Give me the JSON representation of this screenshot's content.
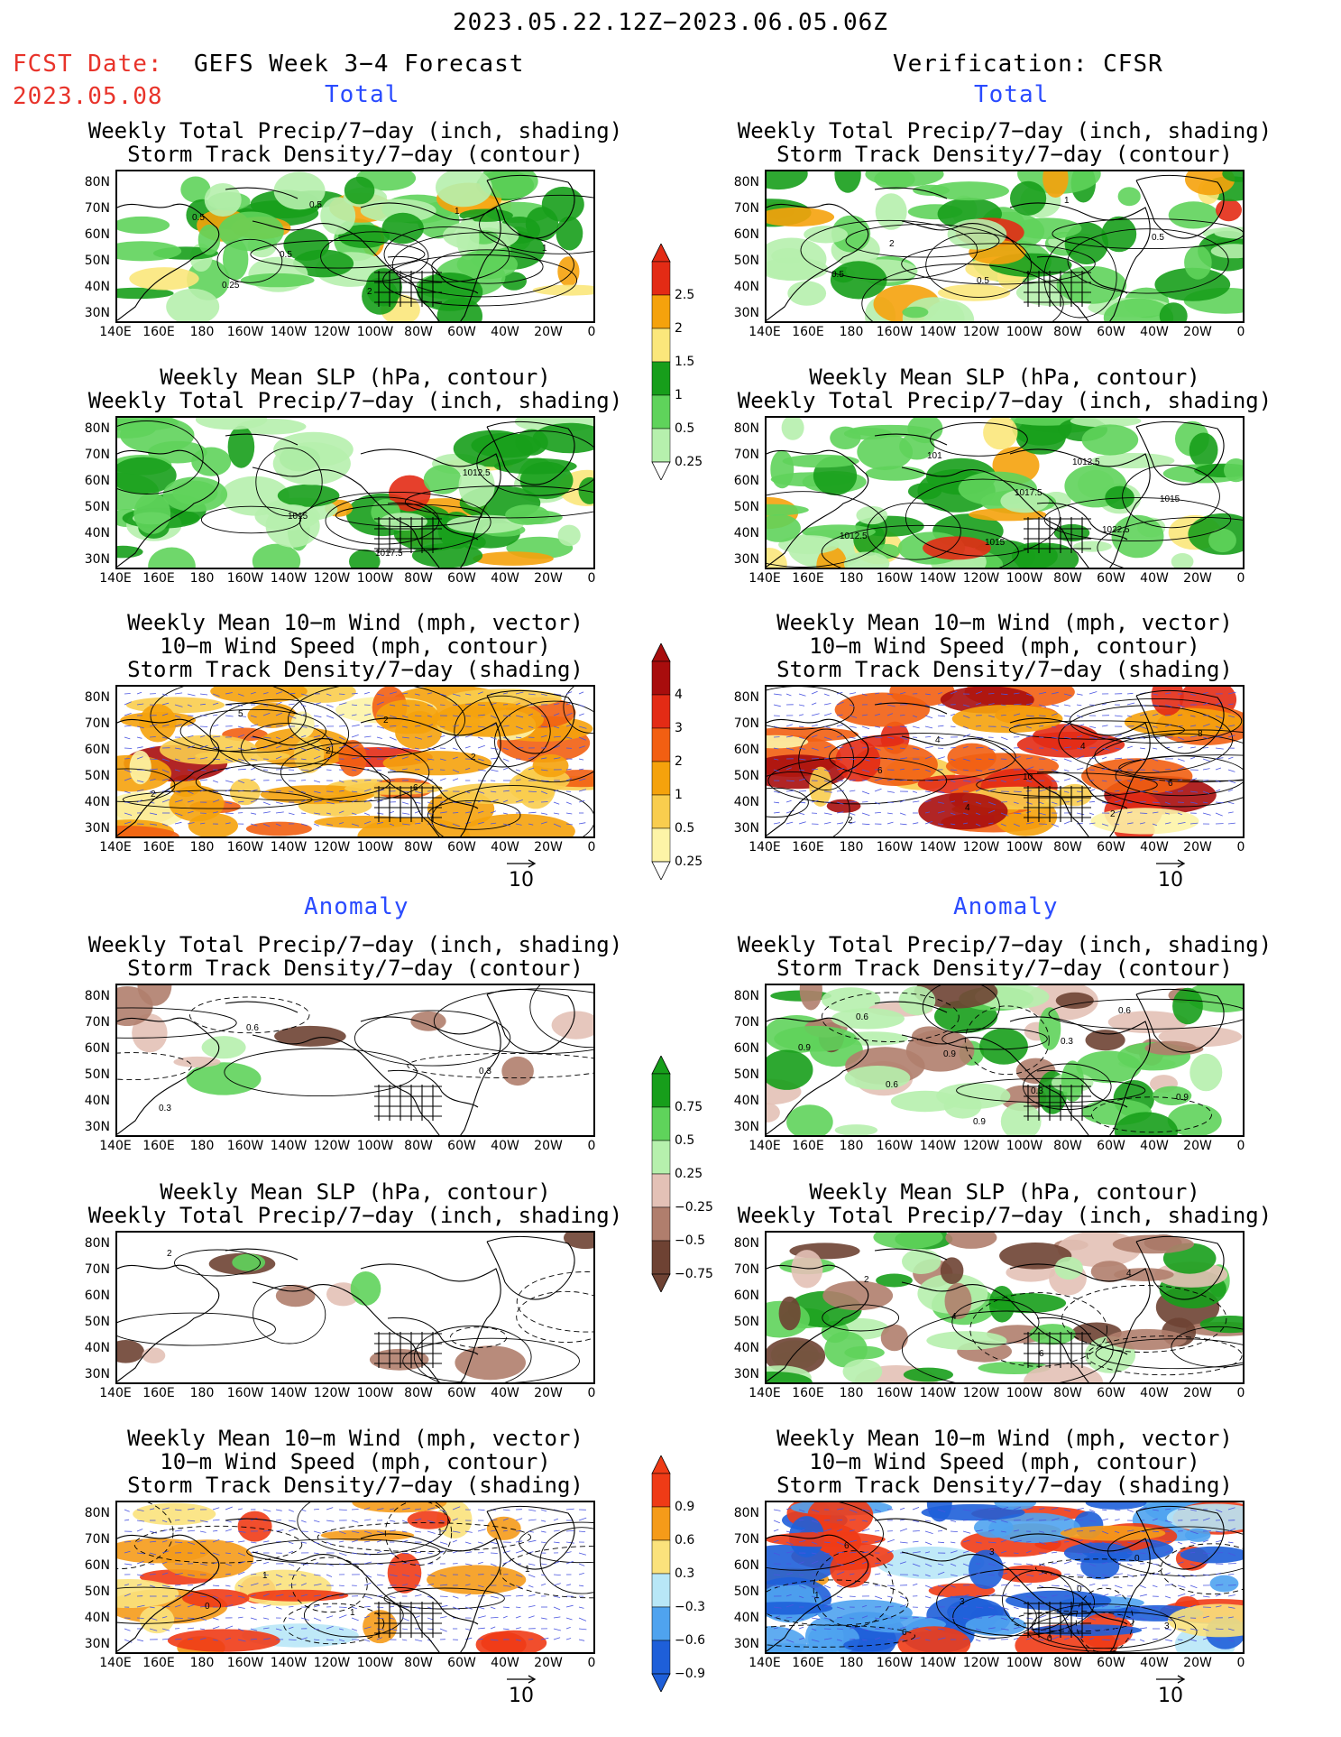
{
  "header": {
    "date_range": "2023.05.22.12Z−2023.06.05.06Z",
    "fcst_label": "FCST Date:",
    "fcst_date": "2023.05.08",
    "model_label": "GEFS Week 3−4 Forecast",
    "verification_label": "Verification: CFSR"
  },
  "sections": {
    "total_left": "Total",
    "total_right": "Total",
    "anomaly_left": "Anomaly",
    "anomaly_right": "Anomaly"
  },
  "titles": {
    "precip_track": [
      "Weekly Total Precip/7−day (inch, shading)",
      "Storm Track Density/7−day (contour)"
    ],
    "slp_precip": [
      "Weekly Mean SLP (hPa, contour)",
      "Weekly Total Precip/7−day (inch, shading)"
    ],
    "wind": [
      "Weekly Mean 10−m Wind (mph, vector)",
      "10−m Wind Speed (mph, contour)",
      "Storm Track Density/7−day (shading)"
    ]
  },
  "axes": {
    "lat_labels": [
      "80N",
      "70N",
      "60N",
      "50N",
      "40N",
      "30N"
    ],
    "lon_labels": [
      "140E",
      "160E",
      "180",
      "160W",
      "140W",
      "120W",
      "100W",
      "80W",
      "60W",
      "40W",
      "20W",
      "0"
    ]
  },
  "vector_reference": "10",
  "colorbars": {
    "precip_total": {
      "labels": [
        "2.5",
        "2",
        "1.5",
        "1",
        "0.5",
        "0.25"
      ],
      "colors": [
        "#e32b15",
        "#f5a20c",
        "#fbe77b",
        "#179e1b",
        "#5fd35b",
        "#b6f0ad"
      ]
    },
    "track_total": {
      "labels": [
        "4",
        "3",
        "2",
        "1",
        "0.5",
        "0.25"
      ],
      "colors": [
        "#a80d0d",
        "#e32b15",
        "#f25f12",
        "#f5a20c",
        "#f9cd4e",
        "#fdf4a7"
      ]
    },
    "precip_anom": {
      "labels": [
        "0.75",
        "0.5",
        "0.25",
        "−0.25",
        "−0.5",
        "−0.75"
      ],
      "colors": [
        "#179e1b",
        "#5fd35b",
        "#b6f0ad",
        "#e3c1b6",
        "#b07e6d",
        "#6e4233"
      ]
    },
    "track_anom": {
      "labels": [
        "0.9",
        "0.6",
        "0.3",
        "−0.3",
        "−0.6",
        "−0.9"
      ],
      "colors": [
        "#ef3b16",
        "#f59b19",
        "#fbe27c",
        "#b8e7f7",
        "#4fa3ef",
        "#1e5fd9"
      ]
    }
  },
  "contour_labels": {
    "p1": [
      "0.5",
      "0.5",
      "2",
      "1",
      "1",
      "0.25",
      "0.5"
    ],
    "p2": [
      "2",
      "0.5",
      "1",
      "0.5",
      "0.5"
    ],
    "p3": [
      "1015",
      "1017.5",
      "1012.5"
    ],
    "p4": [
      "1015",
      "1012.5",
      "1015",
      "1012.5",
      "101",
      "1017.5",
      "1022.5"
    ],
    "p5": [
      "2",
      "2",
      "2",
      "5",
      "2",
      "6"
    ],
    "p6": [
      "4",
      "6",
      "2",
      "4",
      "10",
      "2",
      "8",
      "6",
      "4"
    ],
    "p7": [
      "0.3",
      "0.3",
      "0.6"
    ],
    "p8": [
      "0.9",
      "0.6",
      "0.9",
      "0.3",
      "0.6",
      "0.9",
      "0.6",
      "0.9",
      "0.3"
    ],
    "p9": [
      "2"
    ],
    "p10": [
      "2",
      "4",
      "6",
      "4"
    ],
    "p11": [
      "1",
      "1",
      "1",
      "1",
      "0"
    ],
    "p12": [
      "3",
      "0",
      "0",
      "1",
      "6",
      "3",
      "0",
      "3",
      "6"
    ]
  }
}
